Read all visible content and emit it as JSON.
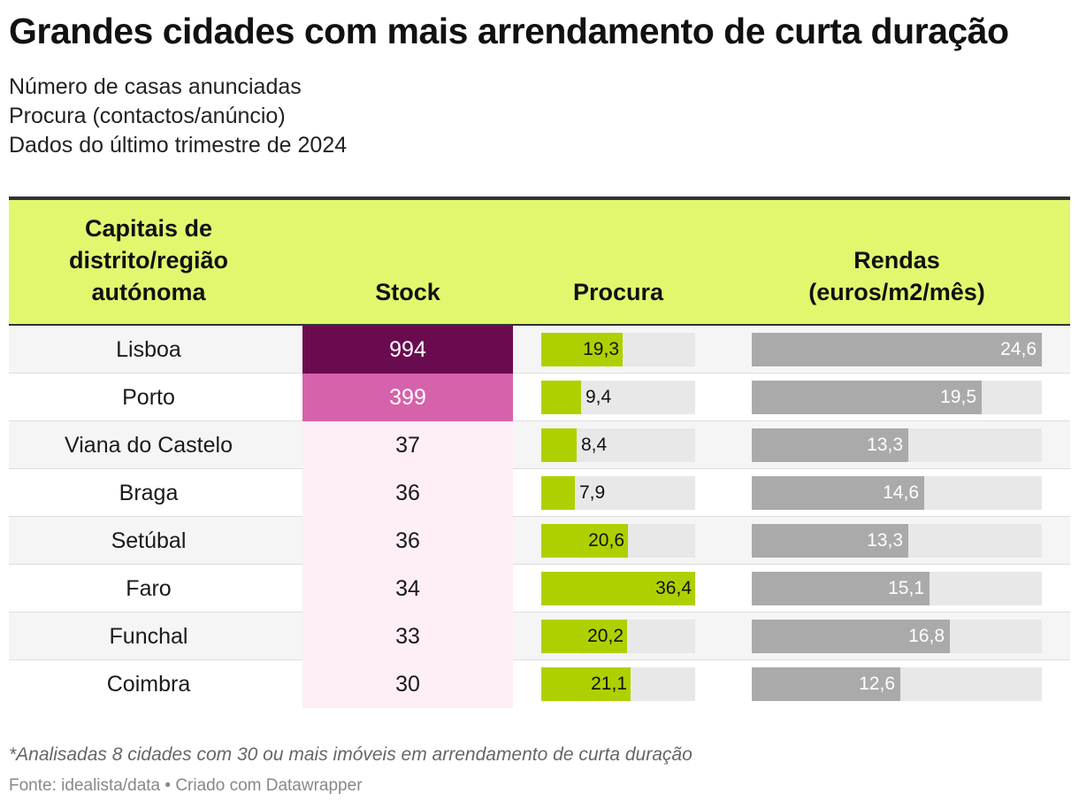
{
  "title": "Grandes cidades com mais arrendamento de curta duração",
  "subtitle": [
    "Número de casas anunciadas",
    "Procura (contactos/anúncio)",
    "Dados do último trimestre de 2024"
  ],
  "headers": {
    "city": [
      "Capitais de",
      "distrito/região",
      "autónoma"
    ],
    "stock": "Stock",
    "procura": "Procura",
    "rendas": [
      "Rendas",
      "(euros/m2/mês)"
    ]
  },
  "colors": {
    "header_bg": "#e2f76e",
    "stock_high": "#6b0b4f",
    "stock_mid": "#d562ab",
    "stock_low": "#fdeef7",
    "procura_bar": "#afd000",
    "rendas_bar": "#aaaaaa",
    "track": "#e8e8e8"
  },
  "chart_data": {
    "type": "table",
    "title": "Grandes cidades com mais arrendamento de curta duração",
    "columns": [
      "Capitais de distrito/região autónoma",
      "Stock",
      "Procura",
      "Rendas (euros/m2/mês)"
    ],
    "procura_max": 36.4,
    "rendas_max": 24.6,
    "rows": [
      {
        "city": "Lisboa",
        "stock": "994",
        "procura": 19.3,
        "procura_label": "19,3",
        "rendas": 24.6,
        "rendas_label": "24,6"
      },
      {
        "city": "Porto",
        "stock": "399",
        "procura": 9.4,
        "procura_label": "9,4",
        "rendas": 19.5,
        "rendas_label": "19,5"
      },
      {
        "city": "Viana do Castelo",
        "stock": "37",
        "procura": 8.4,
        "procura_label": "8,4",
        "rendas": 13.3,
        "rendas_label": "13,3"
      },
      {
        "city": "Braga",
        "stock": "36",
        "procura": 7.9,
        "procura_label": "7,9",
        "rendas": 14.6,
        "rendas_label": "14,6"
      },
      {
        "city": "Setúbal",
        "stock": "36",
        "procura": 20.6,
        "procura_label": "20,6",
        "rendas": 13.3,
        "rendas_label": "13,3"
      },
      {
        "city": "Faro",
        "stock": "34",
        "procura": 36.4,
        "procura_label": "36,4",
        "rendas": 15.1,
        "rendas_label": "15,1"
      },
      {
        "city": "Funchal",
        "stock": "33",
        "procura": 20.2,
        "procura_label": "20,2",
        "rendas": 16.8,
        "rendas_label": "16,8"
      },
      {
        "city": "Coimbra",
        "stock": "30",
        "procura": 21.1,
        "procura_label": "21,1",
        "rendas": 12.6,
        "rendas_label": "12,6"
      }
    ]
  },
  "footnote": "*Analisadas 8 cidades com 30 ou mais imóveis em arrendamento de curta duração",
  "source": "Fonte: idealista/data • Criado com Datawrapper"
}
